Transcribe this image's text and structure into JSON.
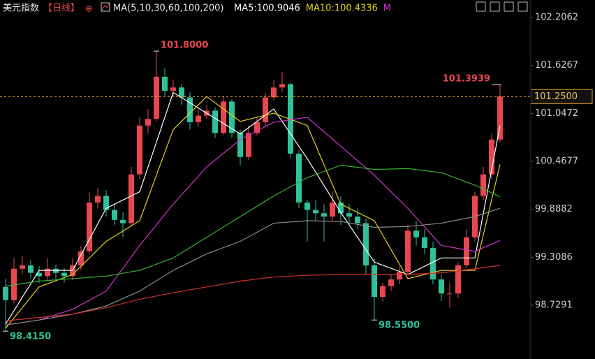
{
  "chart_data": {
    "type": "candlestick",
    "title": "美元指数",
    "period": "【日线】",
    "ma_header": "MA(5,10,30,60,100,200)",
    "ylim": [
      98.079,
      102.417
    ],
    "yticks": [
      102.2062,
      101.6267,
      101.0472,
      100.4677,
      99.8882,
      99.3086,
      98.7291
    ],
    "grid": false,
    "up_color": "#e8474f",
    "down_color": "#2fc19a",
    "open": [
      98.95,
      98.79,
      99.17,
      99.21,
      99.12,
      99.08,
      99.17,
      99.12,
      99.08,
      99.21,
      99.38,
      99.97,
      100.05,
      99.88,
      99.76,
      99.72,
      100.31,
      100.9,
      100.98,
      101.49,
      101.32,
      101.36,
      101.24,
      100.94,
      101.02,
      101.08,
      100.81,
      101.19,
      100.81,
      100.52,
      100.81,
      100.94,
      101.24,
      101.36,
      101.4,
      100.56,
      99.97,
      99.88,
      99.84,
      99.8,
      99.97,
      99.84,
      99.8,
      99.72,
      99.21,
      98.83,
      98.96,
      99.04,
      99.13,
      99.63,
      99.55,
      99.42,
      99.04,
      98.87,
      98.87,
      99.21,
      99.55,
      100.05,
      100.31,
      100.73
    ],
    "high": [
      99.05,
      99.3,
      99.32,
      99.28,
      99.2,
      99.3,
      99.22,
      99.18,
      99.3,
      99.45,
      100.1,
      100.15,
      100.12,
      99.95,
      99.85,
      100.4,
      101.0,
      101.1,
      101.8,
      101.6,
      101.45,
      101.4,
      101.3,
      101.1,
      101.15,
      101.12,
      101.25,
      101.22,
      100.85,
      100.9,
      101.0,
      101.3,
      101.45,
      101.55,
      101.42,
      100.6,
      100.0,
      100.0,
      99.95,
      100.1,
      100.05,
      99.95,
      99.9,
      99.78,
      99.3,
      99.0,
      99.1,
      99.2,
      99.7,
      99.75,
      99.65,
      99.5,
      99.1,
      99.0,
      99.25,
      99.65,
      100.1,
      100.4,
      100.8,
      101.3939
    ],
    "low": [
      98.415,
      98.75,
      99.1,
      99.05,
      99.0,
      99.02,
      99.05,
      99.0,
      99.03,
      99.15,
      99.35,
      99.9,
      99.8,
      99.7,
      99.55,
      99.68,
      100.25,
      100.8,
      100.95,
      101.25,
      101.25,
      101.15,
      100.85,
      100.88,
      100.98,
      100.75,
      100.78,
      100.75,
      100.42,
      100.48,
      100.78,
      100.9,
      101.2,
      101.3,
      100.5,
      99.9,
      99.5,
      99.75,
      99.5,
      99.75,
      99.7,
      99.7,
      99.65,
      99.1,
      98.55,
      98.78,
      98.9,
      98.98,
      99.1,
      99.45,
      99.35,
      98.98,
      98.78,
      98.7,
      98.82,
      99.18,
      99.5,
      100.0,
      100.25,
      100.7
    ],
    "close": [
      98.79,
      99.17,
      99.21,
      99.12,
      99.08,
      99.17,
      99.12,
      99.08,
      99.21,
      99.38,
      99.97,
      100.05,
      99.88,
      99.76,
      99.72,
      100.31,
      100.9,
      100.98,
      101.49,
      101.32,
      101.36,
      101.24,
      100.94,
      101.02,
      101.08,
      100.81,
      101.19,
      100.81,
      100.52,
      100.81,
      100.94,
      101.24,
      101.36,
      101.4,
      100.56,
      99.97,
      99.88,
      99.84,
      99.8,
      99.97,
      99.84,
      99.8,
      99.72,
      99.21,
      98.83,
      98.96,
      99.04,
      99.13,
      99.63,
      99.55,
      99.42,
      99.04,
      98.87,
      98.87,
      99.21,
      99.55,
      100.05,
      100.31,
      100.73,
      101.25
    ],
    "ma_x": [
      0,
      4,
      8,
      12,
      16,
      20,
      24,
      28,
      32,
      36,
      40,
      44,
      48,
      52,
      56,
      59
    ],
    "series": [
      {
        "name": "MA5",
        "color": "#ffffff",
        "legend_label": "MA5:100.9046",
        "values": [
          98.5,
          99.15,
          99.15,
          99.9,
          100.1,
          101.3,
          101.05,
          100.8,
          101.1,
          100.5,
          99.85,
          99.25,
          99.1,
          99.3,
          99.3,
          100.9
        ]
      },
      {
        "name": "MA10",
        "color": "#e5d21c",
        "legend_label": "MA10:100.4336",
        "values": [
          98.45,
          98.95,
          99.1,
          99.5,
          99.75,
          100.85,
          101.25,
          100.95,
          101.05,
          100.9,
          99.95,
          99.75,
          99.05,
          99.15,
          99.15,
          100.43
        ]
      },
      {
        "name": "MA30",
        "color": "#d233d2",
        "legend_label": "M",
        "values": [
          98.49,
          98.55,
          98.68,
          98.9,
          99.45,
          99.95,
          100.4,
          100.73,
          100.94,
          101.0,
          100.65,
          100.3,
          99.9,
          99.45,
          99.38,
          99.51
        ]
      },
      {
        "name": "MA60",
        "color": "#31b531",
        "values": [
          98.96,
          99.02,
          99.05,
          99.08,
          99.15,
          99.3,
          99.55,
          99.8,
          100.05,
          100.27,
          100.42,
          100.37,
          100.38,
          100.33,
          100.18,
          100.04
        ]
      },
      {
        "name": "MA100",
        "color": "#8c8c8c",
        "values": [
          98.49,
          98.55,
          98.62,
          98.72,
          98.9,
          99.15,
          99.35,
          99.5,
          99.72,
          99.75,
          99.74,
          99.67,
          99.68,
          99.72,
          99.8,
          99.9
        ]
      },
      {
        "name": "MA200",
        "color": "#d2322d",
        "values": [
          98.54,
          98.58,
          98.62,
          98.7,
          98.8,
          98.88,
          98.95,
          99.02,
          99.07,
          99.09,
          99.1,
          99.1,
          99.1,
          99.12,
          99.17,
          99.21
        ]
      }
    ],
    "annotations": [
      {
        "x": 18,
        "value": 101.8,
        "label": "101.8000",
        "color": "#e8474f",
        "side": "right"
      },
      {
        "x": 59,
        "value": 101.3939,
        "label": "101.3939",
        "color": "#e8474f",
        "side": "left"
      },
      {
        "x": 44,
        "value": 98.55,
        "label": "98.5500",
        "color": "#2fc19a",
        "side": "right"
      },
      {
        "x": 0,
        "value": 98.415,
        "label": "98.4150",
        "color": "#2fc19a",
        "side": "right"
      }
    ],
    "last_price": {
      "value": 101.25,
      "label": "101.2500"
    }
  }
}
